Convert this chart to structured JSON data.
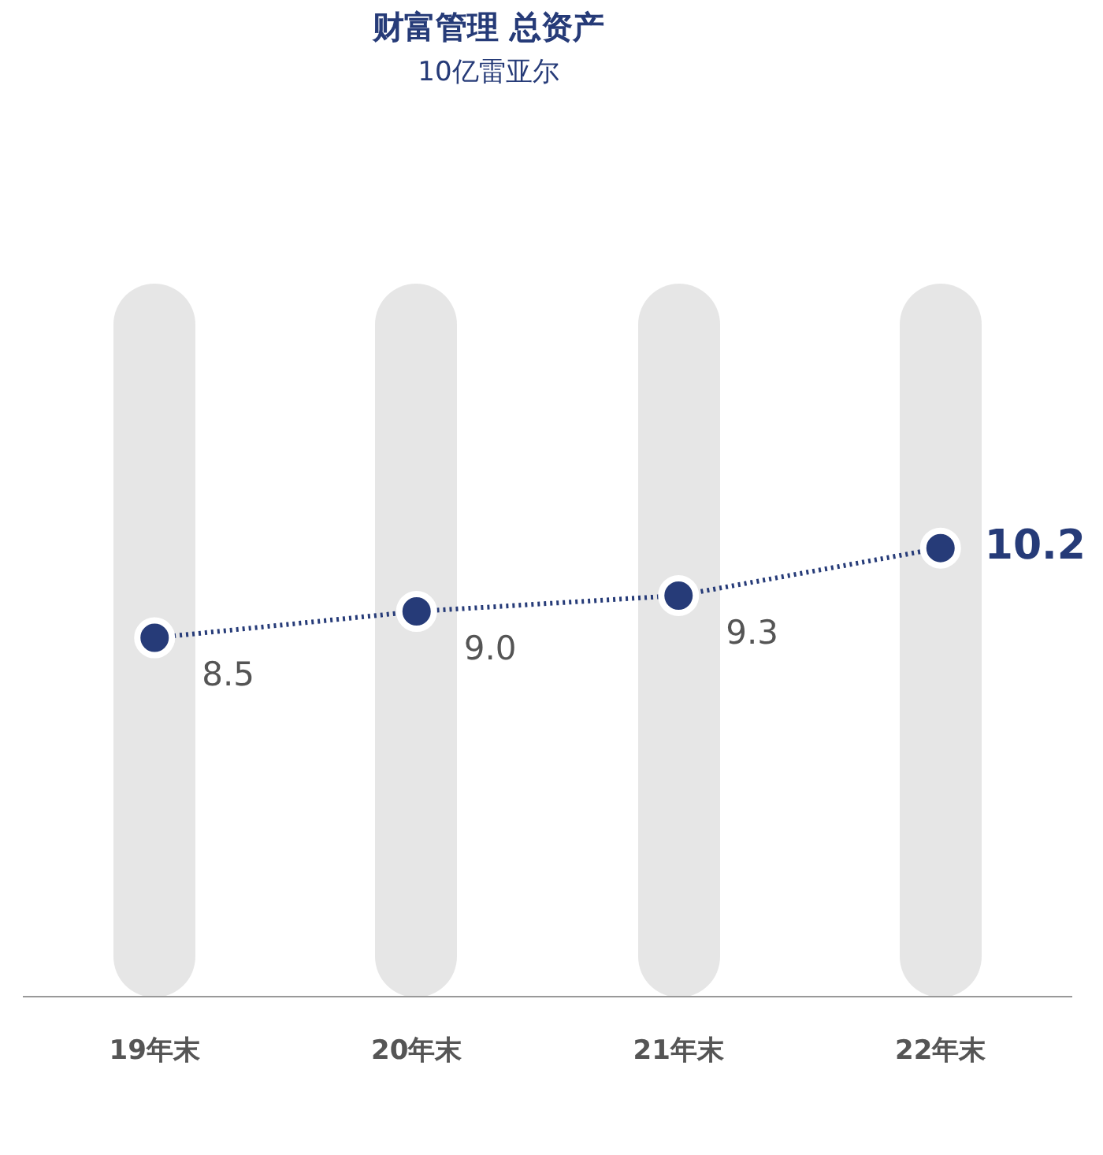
{
  "chart_data": {
    "type": "line",
    "title": "财富管理 总资产",
    "subtitle": "10亿雷亚尔",
    "categories": [
      "19年末",
      "20年末",
      "21年末",
      "22年末"
    ],
    "series": [
      {
        "color": "#263b78",
        "values": [
          8.5,
          9.0,
          9.3,
          10.2
        ],
        "value_labels": [
          "8.5",
          "9.0",
          "9.3",
          "10.2"
        ]
      }
    ],
    "tick_labels": "x",
    "grid": false,
    "legend": false,
    "marker": "circle",
    "line_style": "dotted"
  }
}
